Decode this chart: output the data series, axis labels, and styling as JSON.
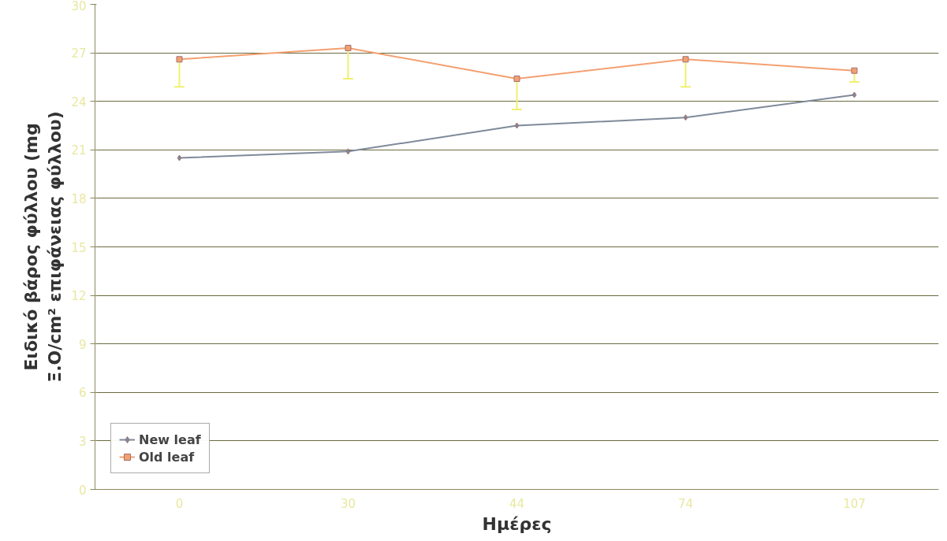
{
  "chart_data": {
    "type": "line",
    "xlabel": "Ημέρες",
    "ylabel": "Ειδικό βάρος φύλλου (mg\nΞ.Ο/cm² επιφάνειας φύλλου)",
    "categories": [
      "0",
      "30",
      "44",
      "74",
      "107"
    ],
    "series": [
      {
        "name": "New leaf",
        "color": "#7f8a9a",
        "marker": "diamond",
        "values": [
          20.5,
          20.9,
          22.5,
          23.0,
          24.4
        ]
      },
      {
        "name": "Old leaf",
        "color": "#f4a070",
        "marker": "square",
        "values": [
          26.6,
          27.3,
          25.4,
          26.6,
          25.9
        ],
        "errors": [
          [
            24.9,
            26.6
          ],
          [
            25.4,
            27.3
          ],
          [
            23.5,
            25.4
          ],
          [
            24.9,
            26.6
          ],
          [
            25.2,
            25.9
          ]
        ]
      }
    ],
    "ylim": [
      0,
      30
    ],
    "yticks": [
      0,
      3,
      6,
      9,
      12,
      15,
      18,
      21,
      24,
      27,
      30
    ],
    "grid": "y",
    "legend": "bottom left",
    "line_style": "solid"
  }
}
